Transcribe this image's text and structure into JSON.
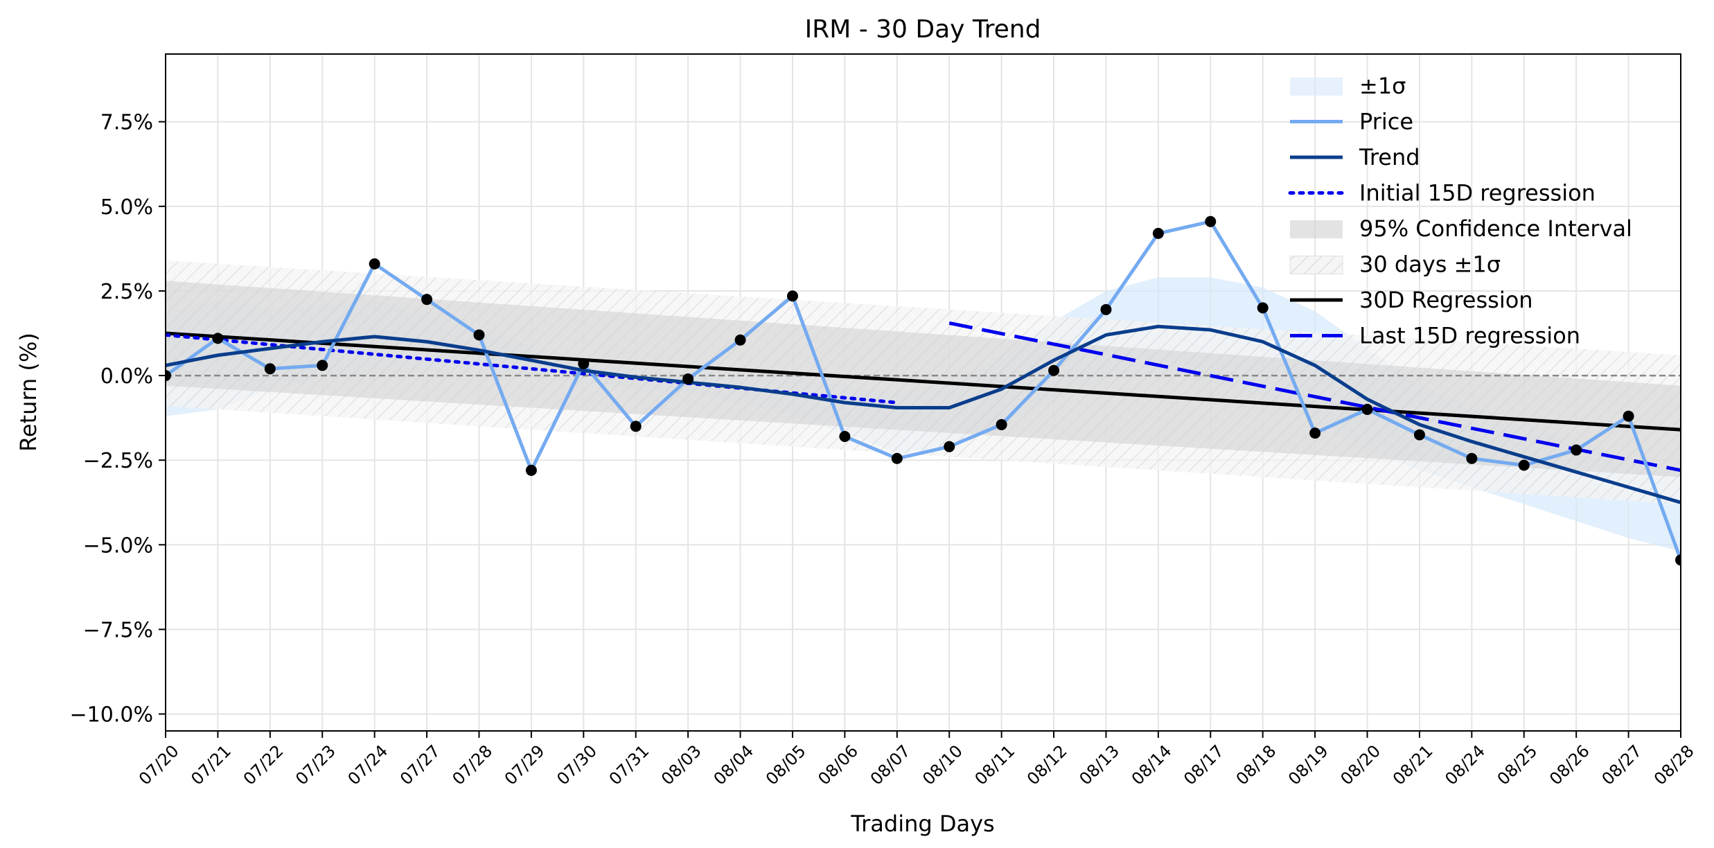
{
  "chart_data": {
    "type": "line",
    "title": "IRM - 30 Day Trend",
    "xlabel": "Trading Days",
    "ylabel": "Return (%)",
    "categories": [
      "07/20",
      "07/21",
      "07/22",
      "07/23",
      "07/24",
      "07/27",
      "07/28",
      "07/29",
      "07/30",
      "07/31",
      "08/03",
      "08/04",
      "08/05",
      "08/06",
      "08/07",
      "08/10",
      "08/11",
      "08/12",
      "08/13",
      "08/14",
      "08/17",
      "08/18",
      "08/19",
      "08/20",
      "08/21",
      "08/24",
      "08/25",
      "08/26",
      "08/27",
      "08/28"
    ],
    "ylim": [
      -10.5,
      9.5
    ],
    "yticks": [
      7.5,
      5.0,
      2.5,
      0.0,
      -2.5,
      -5.0,
      -7.5,
      -10.0
    ],
    "ytick_labels": [
      "7.5%",
      "5.0%",
      "2.5%",
      "0.0%",
      "−2.5%",
      "−5.0%",
      "−7.5%",
      "−10.0%"
    ],
    "grid": true,
    "legend_position": "upper-right",
    "series": [
      {
        "name": "Price",
        "color": "#74aaf0",
        "marker_color": "#000000",
        "values": [
          0.0,
          1.1,
          0.2,
          0.3,
          3.3,
          2.25,
          1.2,
          -2.8,
          0.35,
          -1.5,
          -0.1,
          1.05,
          2.35,
          -1.8,
          -2.45,
          -2.1,
          -1.45,
          0.15,
          1.95,
          4.2,
          4.55,
          2.0,
          -1.7,
          -1.0,
          -1.75,
          -2.45,
          -2.65,
          -2.2,
          -1.2,
          -5.45
        ]
      },
      {
        "name": "Trend",
        "color": "#0a3d8c",
        "values": [
          0.3,
          0.6,
          0.8,
          1.0,
          1.15,
          1.0,
          0.75,
          0.45,
          0.15,
          -0.05,
          -0.2,
          -0.35,
          -0.55,
          -0.8,
          -0.95,
          -0.95,
          -0.4,
          0.45,
          1.2,
          1.45,
          1.35,
          1.0,
          0.3,
          -0.7,
          -1.45,
          -1.95,
          -2.4,
          -2.85,
          -3.3,
          -3.75
        ]
      },
      {
        "name": "Initial 15D regression",
        "color": "#0000ee",
        "dash": "dotted",
        "x_range": [
          0,
          14
        ],
        "y_range": [
          1.2,
          -0.8
        ]
      },
      {
        "name": "Last 15D regression",
        "color": "#0000ee",
        "dash": "dashed",
        "x_range": [
          15,
          29
        ],
        "y_range": [
          1.55,
          -2.8
        ]
      },
      {
        "name": "30D Regression",
        "color": "#000000",
        "x_range": [
          0,
          29
        ],
        "y_range": [
          1.25,
          -1.6
        ]
      }
    ],
    "bands": [
      {
        "name": "±1σ",
        "color": "#d6e8fb",
        "upper": [
          1.8,
          2.2,
          2.0,
          2.1,
          2.2,
          1.9,
          1.3,
          0.9,
          0.5,
          0.2,
          0.1,
          0.1,
          0.0,
          -0.3,
          -0.5,
          -0.2,
          0.6,
          1.6,
          2.5,
          2.9,
          2.9,
          2.6,
          1.9,
          0.8,
          -0.3,
          -0.9,
          -1.4,
          -1.9,
          -2.4,
          -2.9
        ],
        "lower": [
          -1.2,
          -1.0,
          -0.4,
          -0.1,
          0.1,
          0.1,
          0.2,
          0.0,
          -0.2,
          -0.4,
          -0.5,
          -0.8,
          -1.2,
          -1.7,
          -2.3,
          -2.1,
          -1.4,
          -0.7,
          -0.1,
          0.0,
          -0.2,
          -0.6,
          -1.3,
          -2.2,
          -2.8,
          -3.3,
          -3.8,
          -4.3,
          -4.8,
          -5.2
        ]
      },
      {
        "name": "95% Confidence Interval",
        "color": "#d0d0d0",
        "x_range": [
          0,
          29
        ],
        "upper_range": [
          2.8,
          -0.3
        ],
        "lower_range": [
          -0.3,
          -3.0
        ]
      },
      {
        "name": "30 days ±1σ",
        "color": "#ececec",
        "hatch": true,
        "x_range": [
          0,
          29
        ],
        "upper_range": [
          3.4,
          0.6
        ],
        "lower_range": [
          -0.9,
          -3.8
        ]
      }
    ],
    "zero_line": {
      "y": 0,
      "dash": "dashed",
      "color": "#888888"
    },
    "legend": [
      "±1σ",
      "Price",
      "Trend",
      "Initial 15D regression",
      "95% Confidence Interval",
      "30 days ±1σ",
      "30D Regression",
      "Last 15D regression"
    ]
  }
}
